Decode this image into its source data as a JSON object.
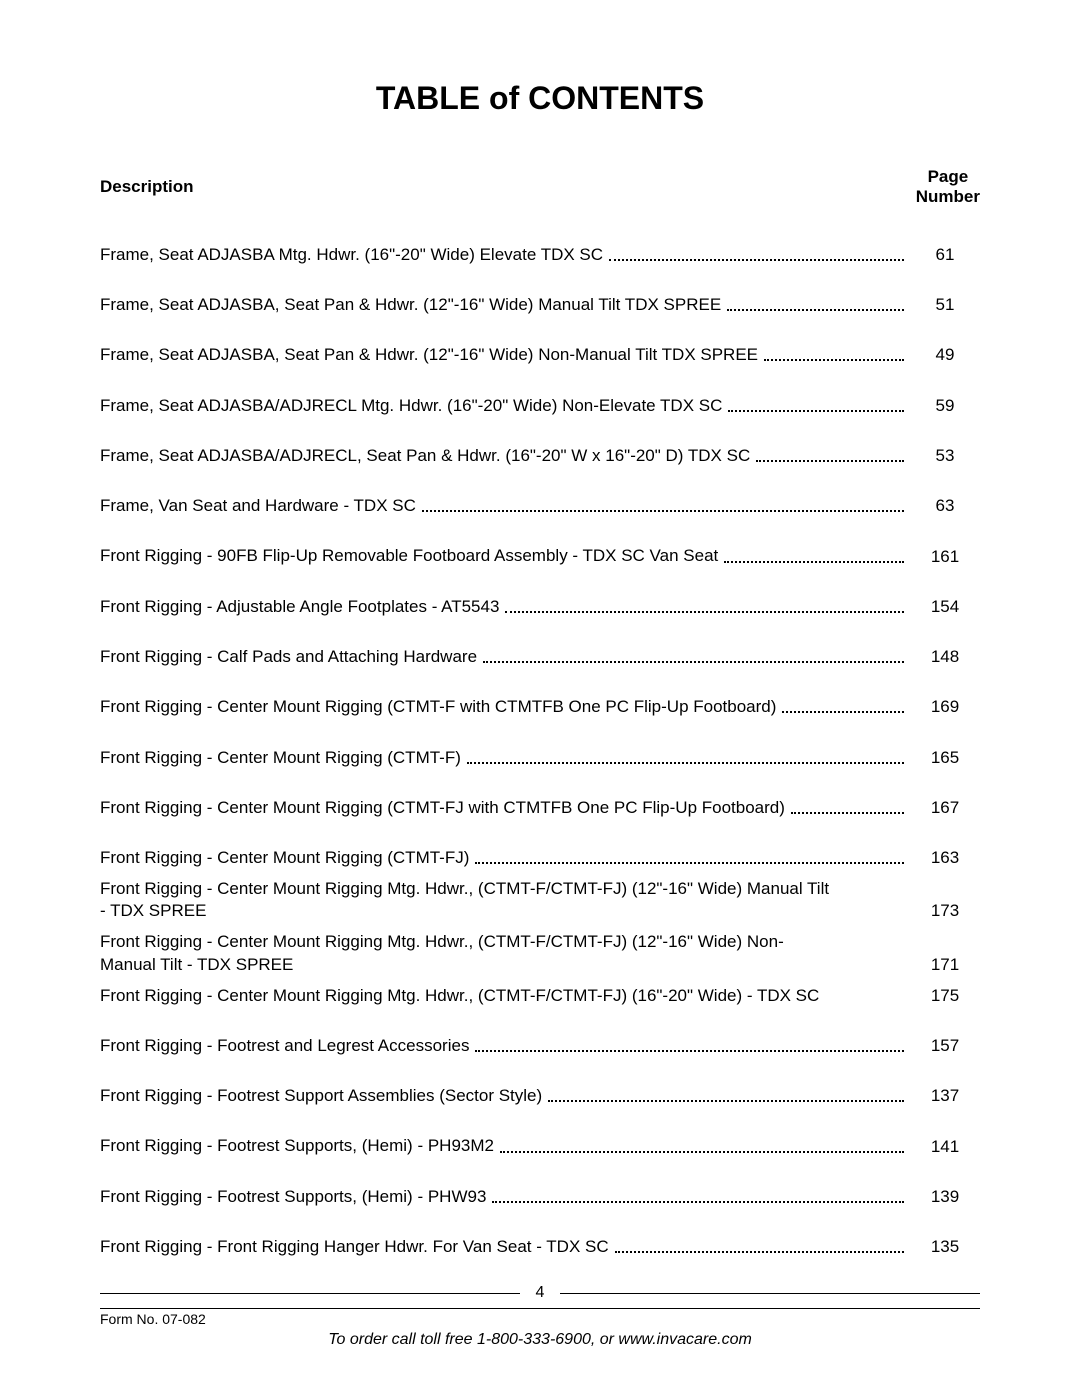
{
  "title": "TABLE of CONTENTS",
  "header": {
    "description": "Description",
    "pageLabelLine1": "Page",
    "pageLabelLine2": "Number"
  },
  "entries": [
    {
      "desc": "Frame, Seat ADJASBA Mtg. Hdwr. (16\"-20\" Wide) Elevate TDX SC",
      "page": "61",
      "dots": true,
      "tight": false
    },
    {
      "desc": "Frame, Seat ADJASBA, Seat Pan & Hdwr. (12\"-16\" Wide) Manual Tilt TDX SPREE",
      "page": "51",
      "dots": true,
      "tight": false
    },
    {
      "desc": "Frame, Seat ADJASBA, Seat Pan & Hdwr. (12\"-16\" Wide) Non-Manual Tilt TDX SPREE",
      "page": "49",
      "dots": true,
      "tight": false
    },
    {
      "desc": "Frame, Seat ADJASBA/ADJRECL Mtg. Hdwr. (16\"-20\" Wide) Non-Elevate TDX SC",
      "page": "59",
      "dots": true,
      "tight": false
    },
    {
      "desc": "Frame, Seat ADJASBA/ADJRECL, Seat Pan & Hdwr. (16\"-20\" W x 16\"-20\" D) TDX SC",
      "page": "53",
      "dots": true,
      "tight": false
    },
    {
      "desc": "Frame, Van Seat and Hardware - TDX SC",
      "page": "63",
      "dots": true,
      "tight": false
    },
    {
      "desc": "Front Rigging - 90FB Flip-Up Removable Footboard Assembly - TDX SC Van Seat",
      "page": "161",
      "dots": true,
      "tight": false
    },
    {
      "desc": "Front Rigging - Adjustable Angle Footplates - AT5543",
      "page": "154",
      "dots": true,
      "tight": false
    },
    {
      "desc": "Front Rigging - Calf Pads and Attaching Hardware",
      "page": "148",
      "dots": true,
      "tight": false
    },
    {
      "desc": "Front Rigging - Center Mount Rigging (CTMT-F with CTMTFB One PC Flip-Up Footboard)",
      "page": "169",
      "dots": true,
      "tight": false
    },
    {
      "desc": "Front Rigging - Center Mount Rigging (CTMT-F)",
      "page": "165",
      "dots": true,
      "tight": false
    },
    {
      "desc": "Front Rigging - Center Mount Rigging (CTMT-FJ with CTMTFB One PC Flip-Up Footboard)",
      "page": "167",
      "dots": true,
      "tight": false
    },
    {
      "desc": "Front Rigging - Center Mount Rigging (CTMT-FJ)",
      "page": "163",
      "dots": true,
      "tight": true
    },
    {
      "desc": "Front Rigging - Center Mount Rigging Mtg. Hdwr., (CTMT-F/CTMT-FJ) (12\"-16\" Wide) Manual Tilt - TDX SPREE",
      "page": "173",
      "dots": false,
      "tight": true
    },
    {
      "desc": "Front Rigging - Center Mount Rigging Mtg. Hdwr., (CTMT-F/CTMT-FJ) (12\"-16\" Wide) Non-Manual Tilt - TDX SPREE",
      "page": "171",
      "dots": false,
      "tight": true
    },
    {
      "desc": "Front Rigging - Center Mount Rigging Mtg. Hdwr., (CTMT-F/CTMT-FJ) (16\"-20\" Wide) - TDX SC",
      "page": "175",
      "dots": false,
      "tight": false
    },
    {
      "desc": "Front Rigging - Footrest and Legrest Accessories",
      "page": "157",
      "dots": true,
      "tight": false
    },
    {
      "desc": "Front Rigging - Footrest Support Assemblies (Sector Style)",
      "page": "137",
      "dots": true,
      "tight": false
    },
    {
      "desc": "Front Rigging - Footrest Supports, (Hemi) - PH93M2",
      "page": "141",
      "dots": true,
      "tight": false
    },
    {
      "desc": "Front Rigging - Footrest Supports, (Hemi) - PHW93",
      "page": "139",
      "dots": true,
      "tight": false
    },
    {
      "desc": "Front Rigging - Front Rigging Hanger Hdwr. For Van Seat - TDX SC",
      "page": "135",
      "dots": true,
      "tight": false
    }
  ],
  "footer": {
    "pageNumber": "4",
    "formNo": "Form No. 07-082",
    "orderLine": "To order call toll free 1-800-333-6900, or www.invacare.com"
  },
  "colors": {
    "background": "#ffffff",
    "text": "#000000"
  },
  "typography": {
    "titleFontSize": 32,
    "bodyFontSize": 17,
    "footerFontSize": 14
  }
}
